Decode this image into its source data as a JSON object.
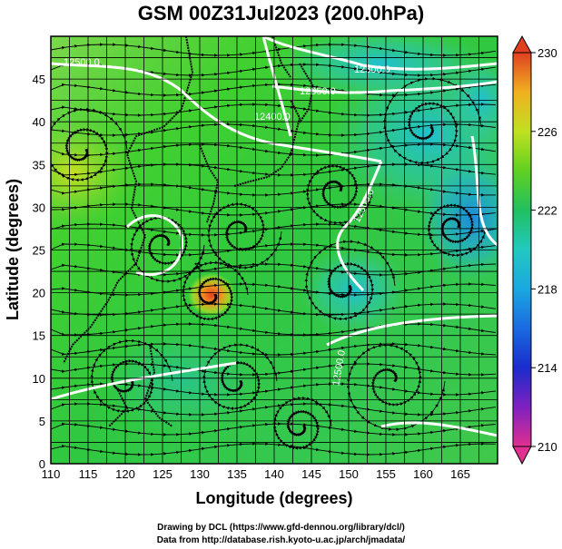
{
  "title": "GSM 00Z31Jul2023 (200.0hPa)",
  "axes": {
    "xlabel": "Longitude (degrees)",
    "ylabel": "Latitude  (degrees)",
    "xticks": [
      110,
      115,
      120,
      125,
      130,
      135,
      140,
      145,
      150,
      155,
      160,
      165
    ],
    "yticks": [
      0,
      5,
      10,
      15,
      20,
      25,
      30,
      35,
      40,
      45
    ],
    "xlim": [
      110,
      170
    ],
    "ylim": [
      0,
      50
    ]
  },
  "colorbar": {
    "ticks": [
      210,
      214,
      218,
      222,
      226,
      230
    ],
    "min": 210,
    "max": 230,
    "colors": [
      "#e03090",
      "#8020c0",
      "#1a2ccc",
      "#1a8ae0",
      "#22c0d0",
      "#20c060",
      "#40d020",
      "#a0e020",
      "#f0e020",
      "#f0a020",
      "#e04020"
    ]
  },
  "contour_labels": [
    "12500.0",
    "12300.0",
    "12350.0",
    "12400.0",
    "12500.0",
    "12500.0"
  ],
  "credits": [
    "Drawing by DCL (https://www.gfd-dennou.org/library/dcl/)",
    "Data from http://database.rish.kyoto-u.ac.jp/arch/jmadata/"
  ]
}
